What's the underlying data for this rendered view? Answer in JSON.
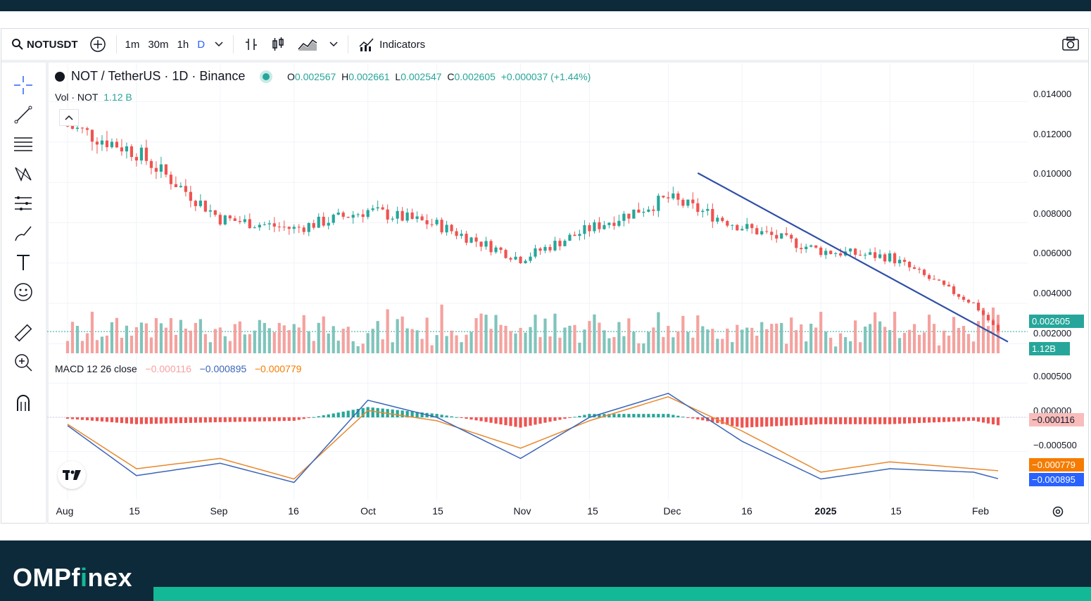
{
  "toolbar": {
    "symbol": "NOTUSDT",
    "intervals": [
      "1m",
      "30m",
      "1h",
      "D"
    ],
    "active_interval": "D",
    "indicators_label": "Indicators"
  },
  "legend": {
    "title": "NOT / TetherUS · 1D · Binance",
    "o_label": "O",
    "o": "0.002567",
    "h_label": "H",
    "h": "0.002661",
    "l_label": "L",
    "l": "0.002547",
    "c_label": "C",
    "c": "0.002605",
    "change": "+0.000037 (+1.44%)",
    "vol_label": "Vol · NOT",
    "vol_value": "1.12 B",
    "macd_label": "MACD 12 26 close",
    "macd_hist": "−0.000116",
    "macd_line": "−0.000895",
    "macd_signal": "−0.000779"
  },
  "price_axis": [
    "0.014000",
    "0.012000",
    "0.010000",
    "0.008000",
    "0.006000",
    "0.004000",
    "0.002000"
  ],
  "macd_axis": [
    "0.000500",
    "0.000000",
    "−0.000500"
  ],
  "labels": {
    "last_price": "0.002605",
    "last_volume": "1.12B",
    "hist": "−0.000116",
    "signal": "−0.000779",
    "macd": "−0.000895"
  },
  "x_axis": [
    "Aug",
    "15",
    "Sep",
    "16",
    "Oct",
    "15",
    "Nov",
    "15",
    "Dec",
    "16",
    "2025",
    "15",
    "Feb"
  ],
  "colors": {
    "up": "#26a69a",
    "down": "#ef5350",
    "up_vol": "#7fc4bb",
    "down_vol": "#f4a29f",
    "trendline": "#2f4fa8",
    "macd_line": "#3a65b8",
    "signal_line": "#e8882e",
    "footer_bg": "#0d2a3a",
    "accent": "#13b896"
  },
  "footer": {
    "logo_pre": "OMPf",
    "logo_i": "i",
    "logo_post": "nex"
  },
  "chart_data": {
    "type": "candlestick",
    "x": [
      "2024-08-01",
      "2024-08-15",
      "2024-09-01",
      "2024-09-16",
      "2024-10-01",
      "2024-10-15",
      "2024-11-01",
      "2024-11-15",
      "2024-12-01",
      "2024-12-16",
      "2025-01-01",
      "2025-01-15",
      "2025-02-01",
      "2025-02-06"
    ],
    "close": [
      0.0128,
      0.0115,
      0.0082,
      0.0077,
      0.0086,
      0.0079,
      0.0062,
      0.0077,
      0.0092,
      0.0078,
      0.0066,
      0.0063,
      0.004,
      0.002605
    ],
    "ylim": [
      0.0016,
      0.0145
    ],
    "trendline": {
      "from": [
        "2024-12-07",
        0.01046
      ],
      "to": [
        "2025-02-08",
        0.0021
      ]
    },
    "macd": [
      -0.00012,
      -0.00085,
      -0.00067,
      -0.00095,
      0.00025,
      0.0,
      -0.0006,
      0.0,
      0.00035,
      -0.00035,
      -0.0009,
      -0.00075,
      -0.0008,
      -0.000895
    ],
    "signal": [
      -0.0001,
      -0.00075,
      -0.0006,
      -0.0009,
      0.0001,
      -5e-05,
      -0.00045,
      -5e-05,
      0.0003,
      -0.0002,
      -0.0008,
      -0.00065,
      -0.00075,
      -0.000779
    ],
    "macd_ylim": [
      -0.00115,
      0.00075
    ]
  }
}
